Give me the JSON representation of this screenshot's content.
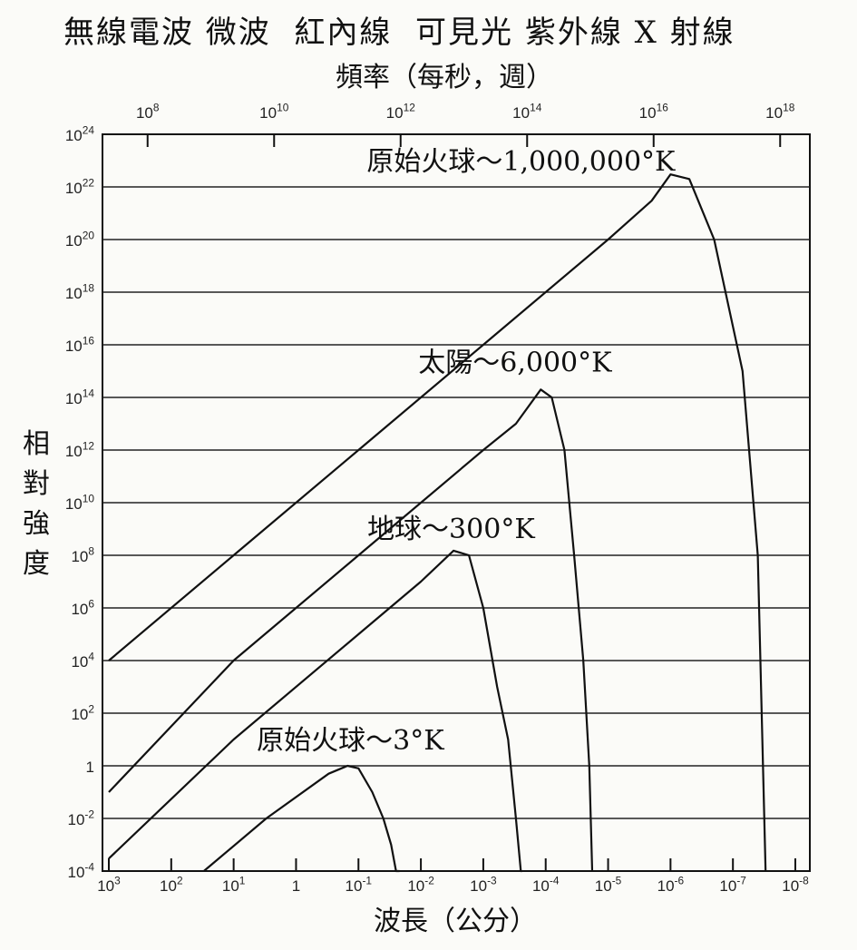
{
  "title": "無線電波 微波  紅內線  可見光 紫外線 X 射線",
  "chart_data": {
    "type": "line",
    "title": "無線電波 微波  紅內線  可見光 紫外線 X 射線",
    "ylabel": "相對強度",
    "xlabel": "波長（公分）",
    "x2label": "頻率（每秒，週）",
    "x_scale": "log",
    "y_scale": "log",
    "x_reversed": true,
    "xlim": [
      1000,
      1e-08
    ],
    "ylim": [
      0.0001,
      1e+24
    ],
    "x_ticks": [
      1000,
      100,
      10,
      1,
      0.1,
      0.01,
      0.001,
      0.0001,
      1e-05,
      1e-06,
      1e-07,
      1e-08
    ],
    "x_tick_labels": [
      {
        "base": "10",
        "exp": "3"
      },
      {
        "base": "10",
        "exp": "2"
      },
      {
        "base": "10",
        "exp": "1"
      },
      {
        "base": "1",
        "exp": ""
      },
      {
        "base": "10",
        "exp": "-1"
      },
      {
        "base": "10",
        "exp": "-2"
      },
      {
        "base": "10",
        "exp": "-3"
      },
      {
        "base": "10",
        "exp": "-4"
      },
      {
        "base": "10",
        "exp": "-5"
      },
      {
        "base": "10",
        "exp": "-6"
      },
      {
        "base": "10",
        "exp": "-7"
      },
      {
        "base": "10",
        "exp": "-8"
      }
    ],
    "x2_ticks": [
      100000000.0,
      10000000000.0,
      1000000000000.0,
      100000000000000.0,
      1e+16,
      1e+18
    ],
    "x2_tick_labels": [
      {
        "base": "10",
        "exp": "8"
      },
      {
        "base": "10",
        "exp": "10"
      },
      {
        "base": "10",
        "exp": "12"
      },
      {
        "base": "10",
        "exp": "14"
      },
      {
        "base": "10",
        "exp": "16"
      },
      {
        "base": "10",
        "exp": "18"
      }
    ],
    "y_ticks": [
      1e+24,
      1e+22,
      1e+20,
      1e+18,
      1e+16,
      100000000000000.0,
      1000000000000.0,
      10000000000.0,
      100000000.0,
      1000000.0,
      10000.0,
      100,
      1,
      0.01,
      0.0001
    ],
    "y_tick_labels": [
      {
        "base": "10",
        "exp": "24"
      },
      {
        "base": "10",
        "exp": "22"
      },
      {
        "base": "10",
        "exp": "20"
      },
      {
        "base": "10",
        "exp": "18"
      },
      {
        "base": "10",
        "exp": "16"
      },
      {
        "base": "10",
        "exp": "14"
      },
      {
        "base": "10",
        "exp": "12"
      },
      {
        "base": "10",
        "exp": "10"
      },
      {
        "base": "10",
        "exp": "8"
      },
      {
        "base": "10",
        "exp": "6"
      },
      {
        "base": "10",
        "exp": "4"
      },
      {
        "base": "10",
        "exp": "2"
      },
      {
        "base": "1",
        "exp": ""
      },
      {
        "base": "10",
        "exp": "-2"
      },
      {
        "base": "10",
        "exp": "-4"
      }
    ],
    "grid": "horizontal",
    "series": [
      {
        "name": "原始火球～1,000,000°K",
        "x": [
          1000,
          10,
          0.1,
          0.001,
          1e-05,
          2e-06,
          1e-06,
          5e-07,
          2e-07,
          7e-08,
          4e-08,
          3e-08
        ],
        "y": [
          10000.0,
          100000000.0,
          1000000000000.0,
          1e+16,
          1e+20,
          3e+21,
          3e+22,
          2e+22,
          1e+20,
          1000000000000000.0,
          100000000.0,
          0.0001
        ]
      },
      {
        "name": "太陽～6,000°K",
        "x": [
          1000,
          10,
          0.1,
          0.001,
          0.0003,
          0.00012,
          8e-05,
          5e-05,
          3.5e-05,
          2.5e-05,
          2e-05,
          1.8e-05
        ],
        "y": [
          0.1,
          10000.0,
          100000000.0,
          1000000000000.0,
          10000000000000.0,
          200000000000000.0,
          100000000000000.0,
          1000000000000.0,
          100000000.0,
          10000.0,
          1,
          0.0001
        ]
      },
      {
        "name": "地球～300°K",
        "x": [
          1000,
          10,
          0.1,
          0.01,
          0.003,
          0.0017,
          0.001,
          0.0006,
          0.0004,
          0.0003,
          0.00025,
          0.00024
        ],
        "y": [
          0.0003,
          10,
          100000.0,
          10000000.0,
          150000000.0,
          100000000.0,
          1000000.0,
          1000.0,
          10,
          0.01,
          0.0001,
          0.0001
        ]
      },
      {
        "name": "原始火球～3°K",
        "x": [
          30,
          3,
          0.3,
          0.15,
          0.1,
          0.06,
          0.04,
          0.03,
          0.025,
          0.022
        ],
        "y": [
          0.0001,
          0.01,
          0.5,
          1,
          0.8,
          0.1,
          0.01,
          0.001,
          0.0001,
          5e-05
        ]
      }
    ]
  }
}
